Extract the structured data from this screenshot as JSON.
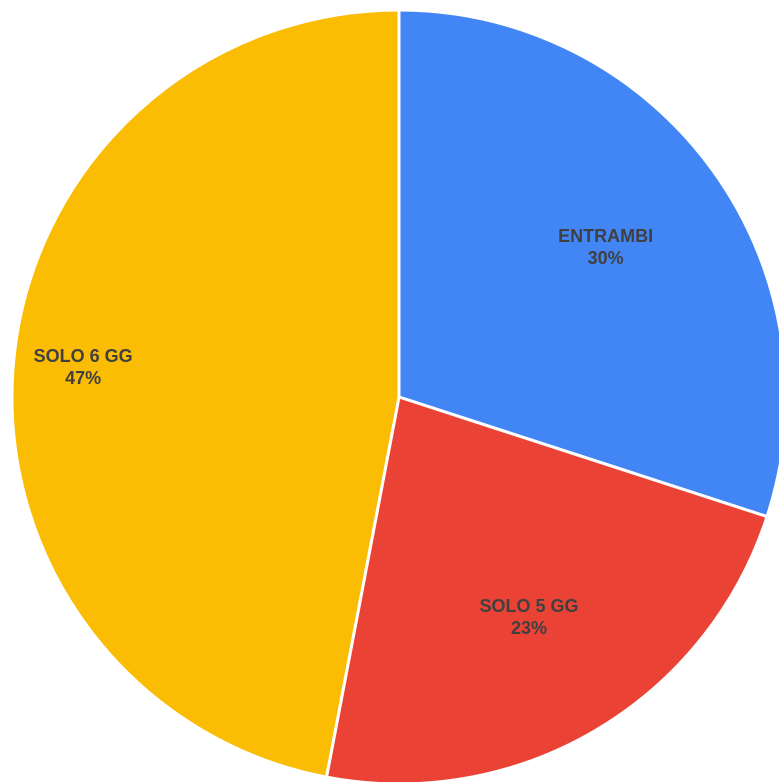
{
  "chart_data": {
    "type": "pie",
    "title": "",
    "categories": [
      "ENTRAMBI",
      "SOLO 5 GG",
      "SOLO 6 GG"
    ],
    "values": [
      30,
      23,
      47
    ],
    "value_labels": [
      "30%",
      "23%",
      "47%"
    ],
    "colors": [
      "#4285f4",
      "#ea4335",
      "#fbbc04"
    ],
    "start_angle_deg": 0,
    "direction": "clockwise",
    "legend": "none",
    "label_color": "#404040"
  }
}
